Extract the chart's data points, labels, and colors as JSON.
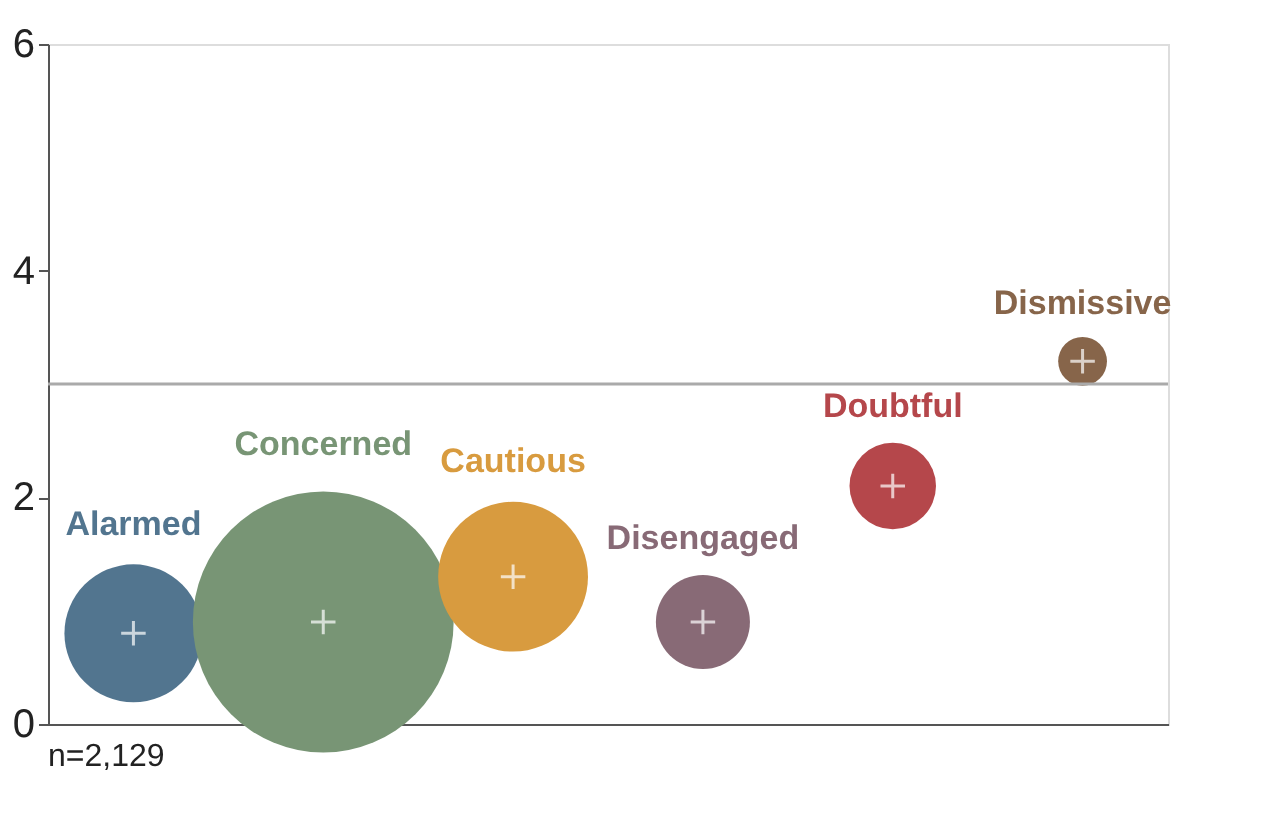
{
  "chart_data": {
    "type": "bubble",
    "categories": [
      "Alarmed",
      "Concerned",
      "Cautious",
      "Disengaged",
      "Doubtful",
      "Dismissive"
    ],
    "values": [
      0.8,
      0.9,
      1.3,
      0.9,
      2.1,
      3.2
    ],
    "sizes": [
      0.28,
      1,
      0.33,
      0.13,
      0.11,
      0.035
    ],
    "colors": [
      "#52758f",
      "#789575",
      "#d89b3f",
      "#886a76",
      "#b5474b",
      "#87654a"
    ],
    "ylim": [
      0,
      6
    ],
    "yticks": [
      0,
      2,
      4,
      6
    ],
    "ref_lines": [
      {
        "axis": "y",
        "value": 3,
        "color": "#aaaaaa"
      }
    ],
    "annotations": [
      "n=2,129"
    ],
    "grid": false
  }
}
